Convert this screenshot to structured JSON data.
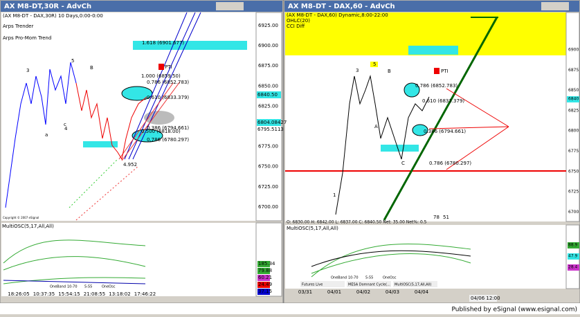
{
  "left_window": {
    "title": "AX M8-DT,30R - AdvCh",
    "header": "(AX M8-DT - DAX,30R) 10 Days,0:00-0:00",
    "studies": [
      "Arps Trender",
      "Arps Pro-Mom Trend"
    ],
    "fib_labels": [
      "1.618 (6901.677)",
      "1.000 (6859.50)",
      "0.786 (6852.783)",
      "0.610 (6833.379)",
      "0.500 (6818.00)",
      "0.386 (6794.661)",
      "0.786 (6780.297)"
    ],
    "pti": "PTI",
    "wave_labels": [
      "3",
      "5",
      "B",
      "a",
      "c",
      "4",
      "4.952"
    ],
    "price_labels": [
      "6925.00",
      "6900.00",
      "6875.00",
      "6850.00",
      "6825.00",
      "6800.00",
      "6775.00",
      "6750.00",
      "6725.00",
      "6700.00"
    ],
    "highlight_labels": [
      "6840.50",
      "6804.08427",
      "6795.5113"
    ],
    "copyright": "Copyright © 2007 eSignal",
    "osc_title": "MultiOSC(5,17,All,All)",
    "osc_values": [
      "185.34",
      "79.88",
      "60.21",
      "24.49",
      "37.15"
    ],
    "osc_buttons": [
      "OneBand",
      "10-70",
      "5-55",
      "OneOsc"
    ],
    "time_labels": [
      "18:26:05",
      "10:37:35",
      "15:54:15",
      "21:08:55",
      "13:18:02",
      "17:46:22"
    ]
  },
  "right_window": {
    "title": "AX M8-DT - DAX,60 - AdvCh",
    "header": [
      "(AX M8-DT - DAX,60) Dynamic,8:00-22:00",
      "OHLC(20)",
      "CCI Diff"
    ],
    "fib_labels": [
      "0.786 (6852.783)",
      "0.610 (6833.379)",
      "0.386 (6794.661)",
      "0.786 (6780.297)"
    ],
    "pti": "PTI",
    "wave_labels": [
      "3",
      "5",
      "B",
      "1",
      "A",
      "C"
    ],
    "price_labels": [
      "6900",
      "6875",
      "6850",
      "6825",
      "6800",
      "6775",
      "6750",
      "6725",
      "6700"
    ],
    "highlight_label": "6840",
    "status": "O: 6830.00   H: 6842.00   L: 6837.00   C: 6840.50   Net: 35.00   Net%: 0.5",
    "counts": [
      "78",
      "51"
    ],
    "osc_title": "MultiOSC(5,17,All,All)",
    "osc_values": [
      "88.9",
      "47.9",
      "28.4"
    ],
    "osc_buttons": [
      "OneBand",
      "10-70",
      "5-55",
      "OneOsc"
    ],
    "tabs": [
      "Futures Live",
      "MESA Domnant Cycle(...",
      "MultiOSC(5,17,All,All)"
    ],
    "date_labels": [
      "03/31",
      "04/01",
      "04/02",
      "04/03",
      "04/04"
    ],
    "cursor_time": "04/06 12:00"
  },
  "footer": "Published by eSignal (www.esignal.com)"
}
